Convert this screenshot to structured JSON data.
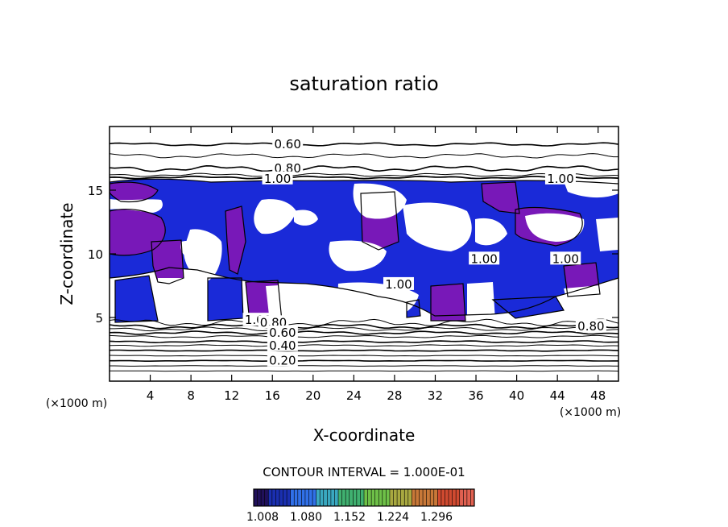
{
  "chart_data": {
    "type": "contour",
    "title": "saturation ratio",
    "xlabel": "X-coordinate",
    "ylabel": "Z-coordinate",
    "x_unit_left": "(×1000 m)",
    "x_unit_right": "(×1000 m)",
    "xlim": [
      0,
      50
    ],
    "ylim": [
      0,
      20
    ],
    "x_ticks": [
      4,
      8,
      12,
      16,
      20,
      24,
      28,
      32,
      36,
      40,
      44,
      48
    ],
    "y_ticks": [
      5,
      10,
      15
    ],
    "contour_interval_text": "CONTOUR INTERVAL = 1.000E-01",
    "contour_labels": [
      {
        "text": "0.60",
        "x": 17.5,
        "z": 18.6
      },
      {
        "text": "0.80",
        "x": 17.5,
        "z": 16.7
      },
      {
        "text": "1.00",
        "x": 16.5,
        "z": 15.9
      },
      {
        "text": "1.00",
        "x": 44.3,
        "z": 15.9
      },
      {
        "text": "1.00",
        "x": 36.8,
        "z": 9.6
      },
      {
        "text": "1.00",
        "x": 44.8,
        "z": 9.6
      },
      {
        "text": "1.00",
        "x": 28.4,
        "z": 7.6
      },
      {
        "text": "1.00",
        "x": 14.6,
        "z": 4.8
      },
      {
        "text": "0.80",
        "x": 16.1,
        "z": 4.6
      },
      {
        "text": "0.60",
        "x": 17.0,
        "z": 3.8
      },
      {
        "text": "0.40",
        "x": 17.0,
        "z": 2.8
      },
      {
        "text": "0.20",
        "x": 17.0,
        "z": 1.6
      },
      {
        "text": "0.80",
        "x": 47.3,
        "z": 4.3
      }
    ],
    "colorbar": {
      "colors": [
        "#20105a",
        "#1a2fb0",
        "#3070e8",
        "#3aa8c0",
        "#40b070",
        "#6ec048",
        "#a8a840",
        "#c87838",
        "#d04a30",
        "#e06050"
      ],
      "tick_labels": [
        "1.008",
        "1.080",
        "1.152",
        "1.224",
        "1.296"
      ]
    },
    "region_colors": {
      "supersaturated_blue": "#1a2ad8",
      "supersaturated_purple": "#7818b8"
    }
  }
}
